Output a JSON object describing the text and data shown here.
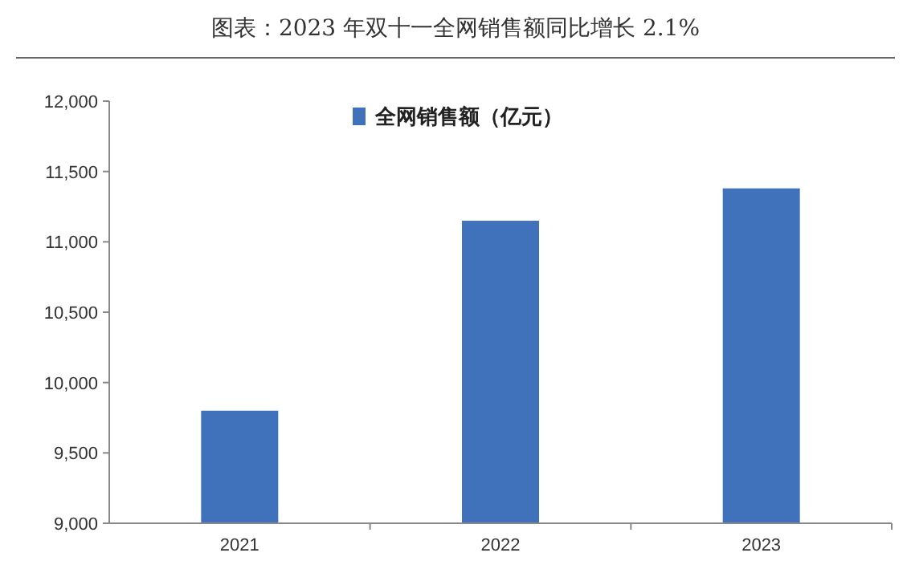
{
  "chart_data": {
    "type": "bar",
    "title": "图表：2023 年双十一全网销售额同比增长 2.1%",
    "categories": [
      "2021",
      "2022",
      "2023"
    ],
    "series": [
      {
        "name": "全网销售额（亿元）",
        "color": "#3f72bb",
        "values": [
          9800,
          11150,
          11380
        ]
      }
    ],
    "ylim": [
      9000,
      12000
    ],
    "yticks": [
      {
        "value": 9000,
        "label": "9,000"
      },
      {
        "value": 9500,
        "label": "9,500"
      },
      {
        "value": 10000,
        "label": "10,000"
      },
      {
        "value": 10500,
        "label": "10,500"
      },
      {
        "value": 11000,
        "label": "11,000"
      },
      {
        "value": 11500,
        "label": "11,500"
      },
      {
        "value": 12000,
        "label": "12,000"
      }
    ],
    "legend": "top"
  }
}
